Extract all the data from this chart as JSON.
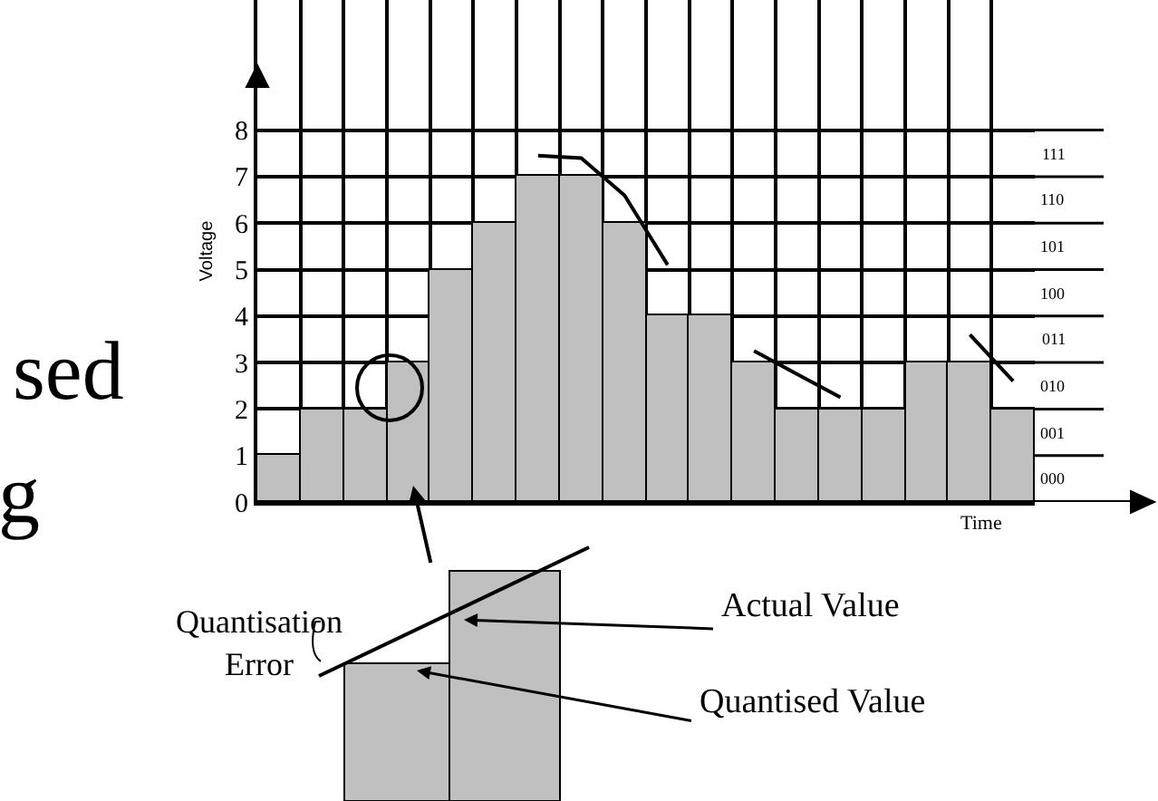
{
  "chart_data": {
    "type": "bar",
    "xlabel": "Time",
    "ylabel": "Voltage",
    "categories": [
      null,
      null,
      null,
      null,
      null,
      null,
      null,
      null,
      null,
      null,
      null,
      null,
      null,
      null,
      null,
      null,
      null,
      null
    ],
    "series": [
      {
        "color": "#c0c0c0",
        "values": [
          1,
          2,
          2,
          3,
          5,
          6,
          7,
          7,
          6,
          4,
          4,
          3,
          2,
          2,
          2,
          3,
          3,
          2
        ]
      },
      {
        "type": "line",
        "color": "#000000",
        "values": [
          null,
          null,
          null,
          null,
          null,
          null,
          7.45,
          7.4,
          6.6,
          5.1,
          null,
          3.25,
          2.75,
          2.25,
          null,
          null,
          3.6,
          2.6
        ]
      }
    ],
    "ylim": [
      0,
      10.8
    ],
    "yticks": [
      0,
      1,
      2,
      3,
      4,
      5,
      6,
      7,
      8
    ],
    "grid": true,
    "marker": "none",
    "line_style": "solid",
    "annotations": [
      "sed",
      "g",
      "Quantisation\nError",
      "Actual Value",
      "Quantised Value",
      "000",
      "001",
      "010",
      "011",
      "100",
      "101",
      "110",
      "111"
    ]
  }
}
